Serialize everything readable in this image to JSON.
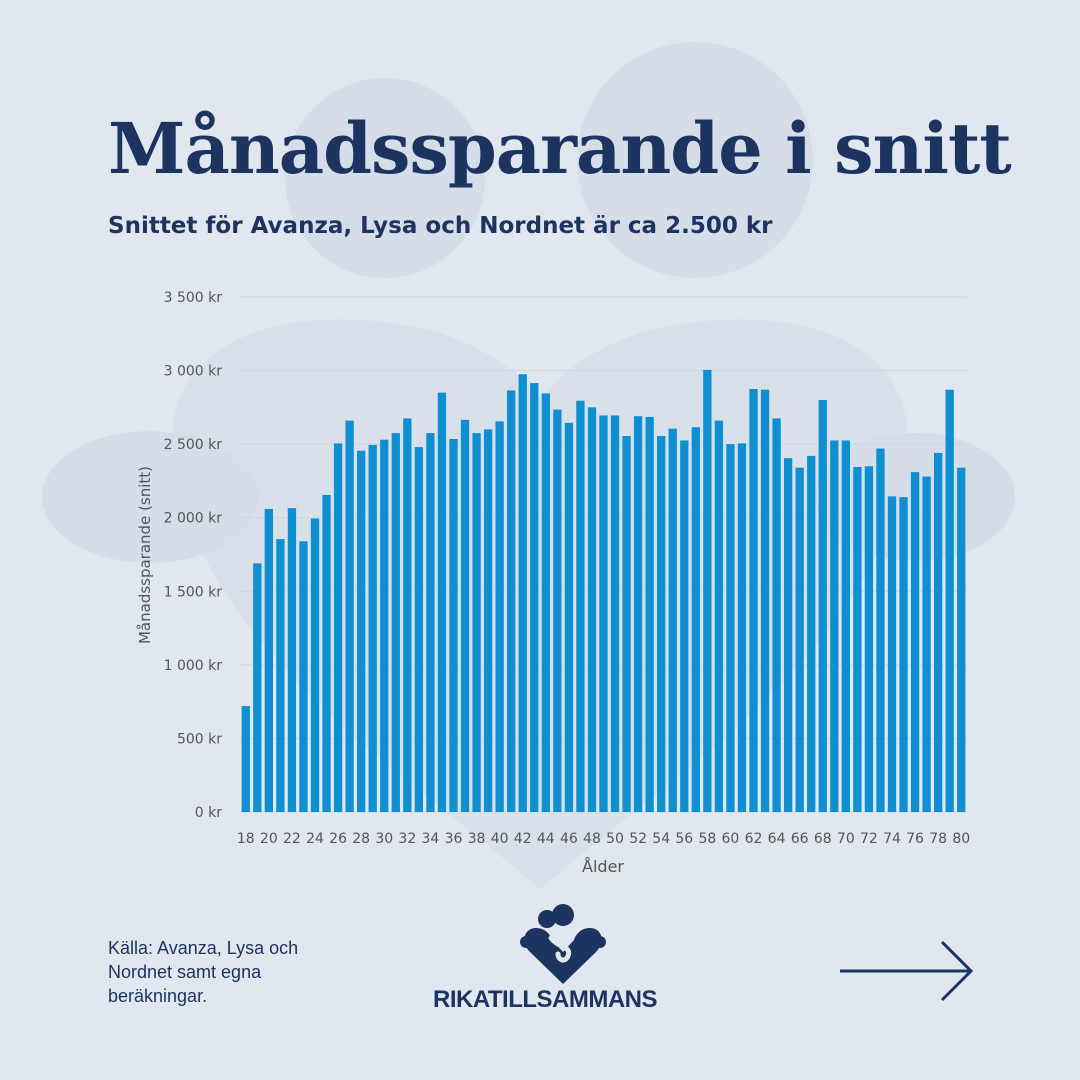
{
  "header": {
    "title": "Månadssparande i snitt",
    "subtitle": "Snittet för Avanza, Lysa och Nordnet är ca 2.500 kr"
  },
  "chart_data": {
    "type": "bar",
    "categories": [
      18,
      19,
      20,
      21,
      22,
      23,
      24,
      25,
      26,
      27,
      28,
      29,
      30,
      31,
      32,
      33,
      34,
      35,
      36,
      37,
      38,
      39,
      40,
      41,
      42,
      43,
      44,
      45,
      46,
      47,
      48,
      49,
      50,
      51,
      52,
      53,
      54,
      55,
      56,
      57,
      58,
      59,
      60,
      61,
      62,
      63,
      64,
      65,
      66,
      67,
      68,
      69,
      70,
      71,
      72,
      73,
      74,
      75,
      76,
      77,
      78,
      79,
      80
    ],
    "values": [
      720,
      1690,
      2060,
      1855,
      2065,
      1840,
      1995,
      2155,
      2505,
      2660,
      2455,
      2495,
      2530,
      2575,
      2675,
      2480,
      2575,
      2850,
      2535,
      2665,
      2575,
      2600,
      2655,
      2865,
      2975,
      2915,
      2845,
      2735,
      2645,
      2795,
      2750,
      2695,
      2695,
      2555,
      2690,
      2685,
      2555,
      2605,
      2525,
      2615,
      3005,
      2660,
      2500,
      2505,
      2875,
      2870,
      2675,
      2405,
      2340,
      2420,
      2800,
      2525,
      2525,
      2345,
      2350,
      2470,
      2145,
      2140,
      2310,
      2280,
      2440,
      2870,
      2340
    ],
    "xticks": [
      "18",
      "20",
      "22",
      "24",
      "26",
      "28",
      "30",
      "32",
      "34",
      "36",
      "38",
      "40",
      "42",
      "44",
      "46",
      "48",
      "50",
      "52",
      "54",
      "56",
      "58",
      "60",
      "62",
      "64",
      "66",
      "68",
      "70",
      "72",
      "74",
      "76",
      "78",
      "80"
    ],
    "yticks": [
      "0 kr",
      "500 kr",
      "1 000 kr",
      "1 500 kr",
      "2 000 kr",
      "2 500 kr",
      "3 000 kr",
      "3 500 kr"
    ],
    "xlabel": "Ålder",
    "ylabel": "Månadssparande (snitt)",
    "ylim": [
      0,
      3500
    ],
    "grid": true,
    "legend": "none",
    "bar_color": "#0e8fd2"
  },
  "footer": {
    "source": "Källa: Avanza, Lysa och Nordnet samt egna beräkningar.",
    "brand": "RIKATILLSAMMANS",
    "next_icon": "arrow-right-icon"
  },
  "colors": {
    "background": "#e1e7ef",
    "primary": "#1d3461",
    "bars": "#0e8fd2",
    "decoration": "#d4dce7"
  }
}
